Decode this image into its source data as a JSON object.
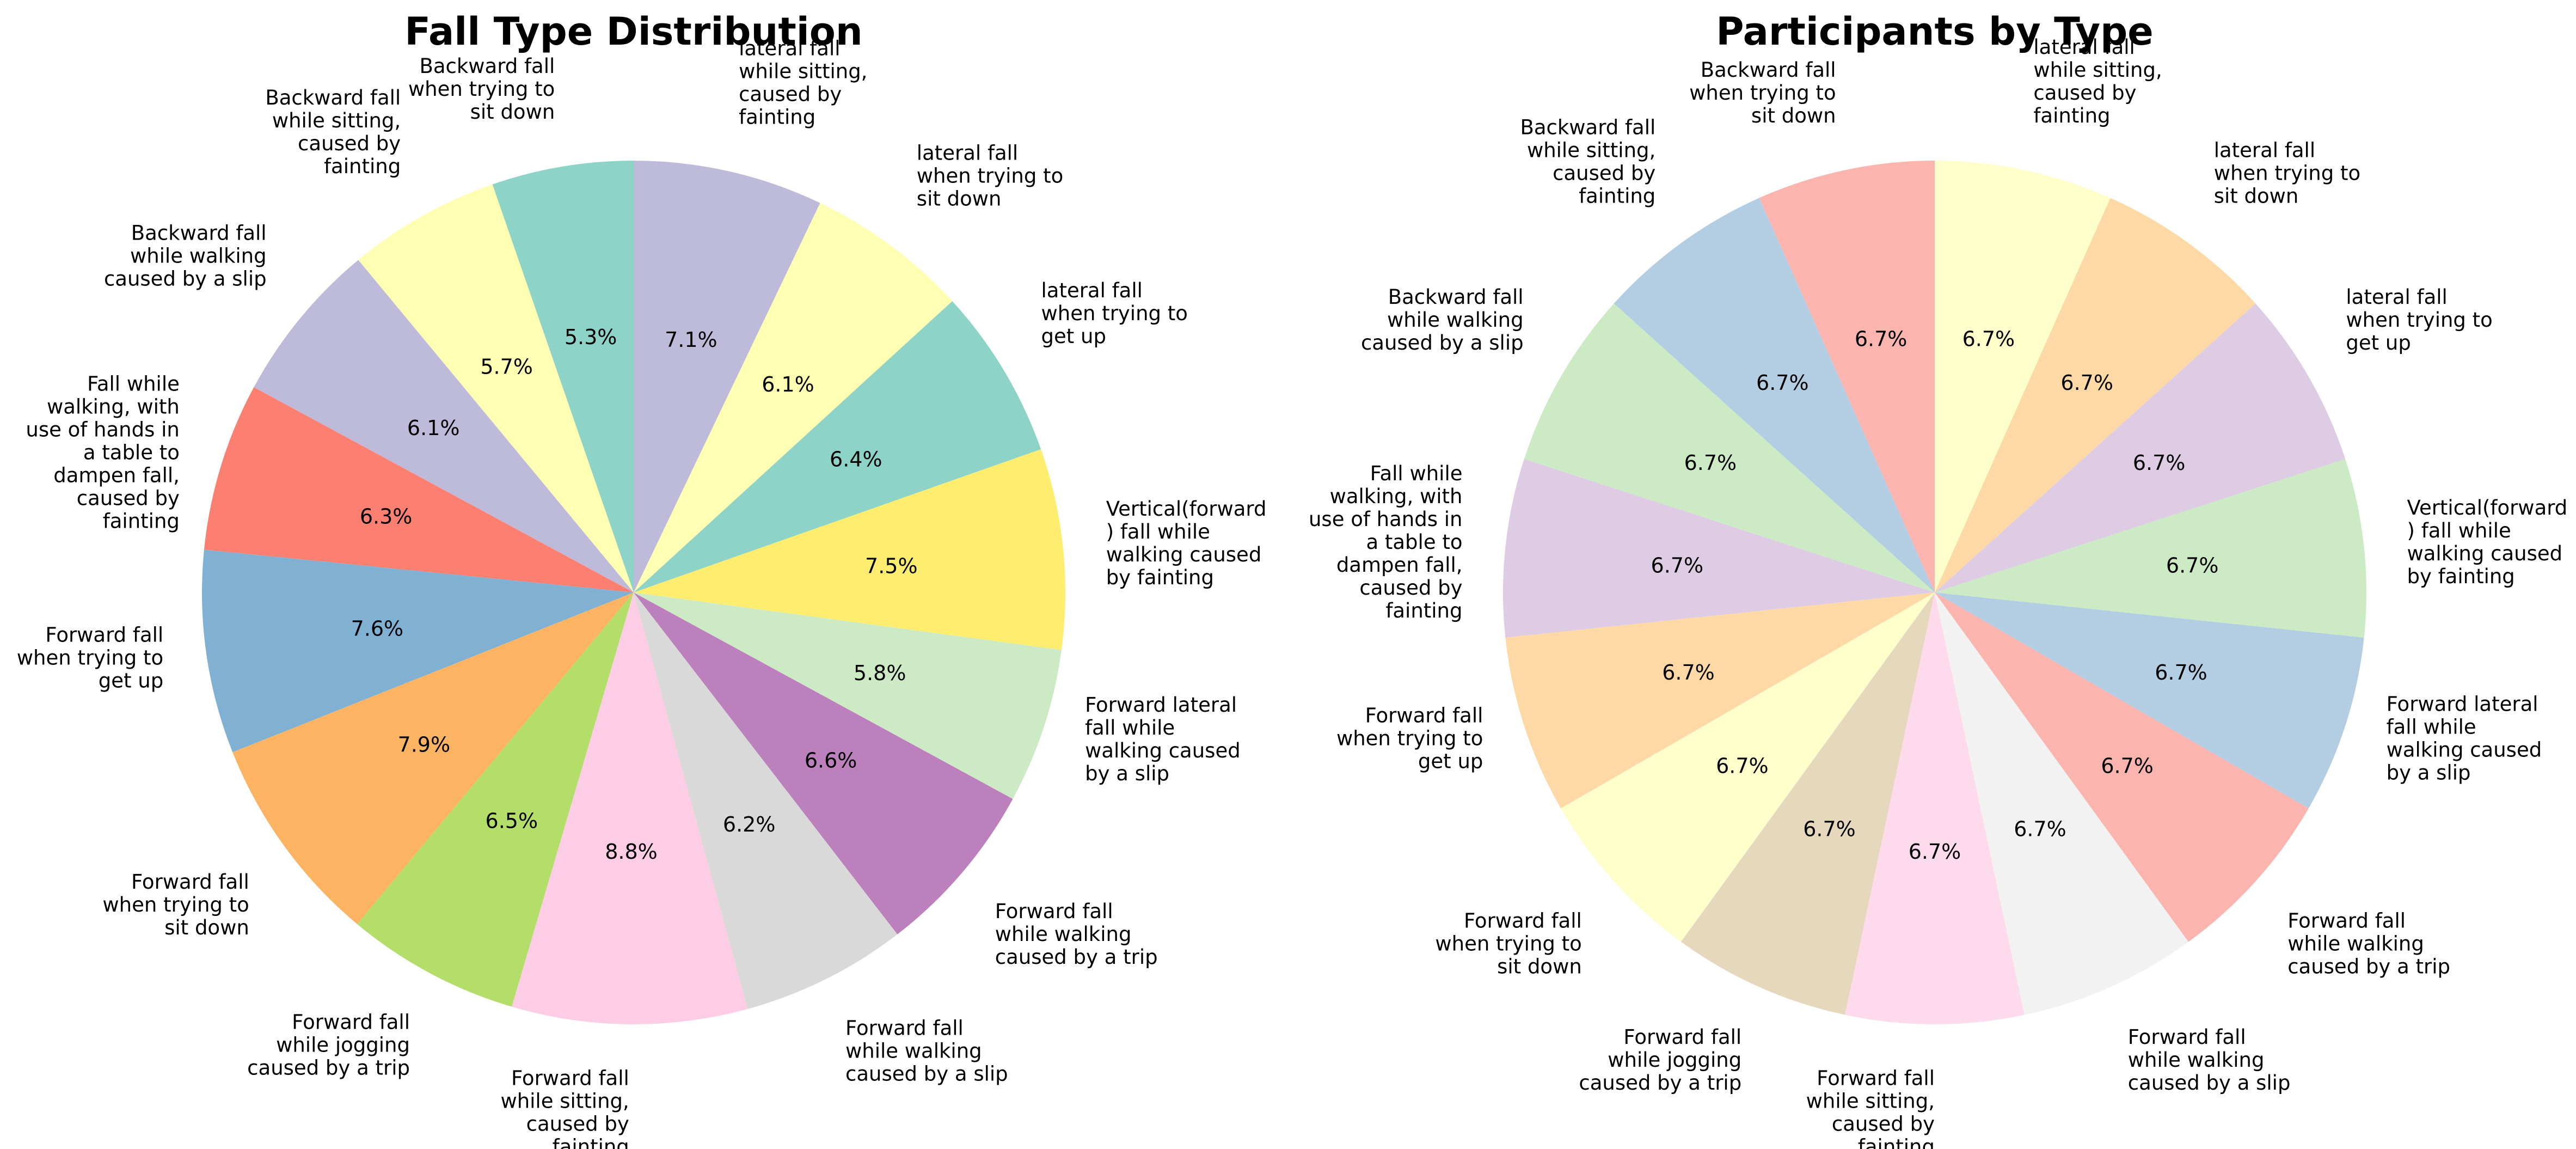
{
  "chart_data": [
    {
      "type": "pie",
      "title": "Fall Type Distribution",
      "start_angle": 90,
      "direction": "counterclockwise",
      "autopct": "%.1f%%",
      "slices": [
        {
          "label": "Backward fall when trying to sit down",
          "value": 5.3,
          "pct": "5.3%",
          "color": "#8dd3c7"
        },
        {
          "label": "Backward fall while sitting, caused by fainting",
          "value": 5.7,
          "pct": "5.7%",
          "color": "#ffffb3"
        },
        {
          "label": "Backward fall while walking caused by a slip",
          "value": 6.1,
          "pct": "6.1%",
          "color": "#bebada"
        },
        {
          "label": "Fall while walking, with use of hands in a table to dampen fall, caused by fainting",
          "value": 6.3,
          "pct": "6.3%",
          "color": "#fb8072"
        },
        {
          "label": "Forward fall when trying to get up",
          "value": 7.6,
          "pct": "7.6%",
          "color": "#80b1d3"
        },
        {
          "label": "Forward fall when trying to sit down",
          "value": 7.9,
          "pct": "7.9%",
          "color": "#fdb462"
        },
        {
          "label": "Forward fall while jogging caused by a trip",
          "value": 6.5,
          "pct": "6.5%",
          "color": "#b3de69"
        },
        {
          "label": "Forward fall while sitting, caused by fainting",
          "value": 8.8,
          "pct": "8.8%",
          "color": "#fccde5"
        },
        {
          "label": "Forward fall while walking caused by a slip",
          "value": 6.2,
          "pct": "6.2%",
          "color": "#d9d9d9"
        },
        {
          "label": "Forward fall while walking caused by a trip",
          "value": 6.6,
          "pct": "6.6%",
          "color": "#bc80bd"
        },
        {
          "label": "Forward lateral fall while walking caused by a slip",
          "value": 5.8,
          "pct": "5.8%",
          "color": "#ccebc5"
        },
        {
          "label": "Vertical(forward) fall while walking caused by fainting",
          "value": 7.5,
          "pct": "7.5%",
          "color": "#ffed6f"
        },
        {
          "label": "lateral fall when trying to get up",
          "value": 6.4,
          "pct": "6.4%",
          "color": "#8dd3c7"
        },
        {
          "label": "lateral fall when trying to sit down",
          "value": 6.1,
          "pct": "6.1%",
          "color": "#ffffb3"
        },
        {
          "label": "lateral fall while sitting, caused by fainting",
          "value": 7.1,
          "pct": "7.1%",
          "color": "#bebada"
        }
      ]
    },
    {
      "type": "pie",
      "title": "Participants by Type",
      "start_angle": 90,
      "direction": "counterclockwise",
      "autopct": "%.1f%%",
      "slices": [
        {
          "label": "Backward fall when trying to sit down",
          "value": 6.7,
          "pct": "6.7%",
          "color": "#fbb4ae"
        },
        {
          "label": "Backward fall while sitting, caused by fainting",
          "value": 6.7,
          "pct": "6.7%",
          "color": "#b3cde3"
        },
        {
          "label": "Backward fall while walking caused by a slip",
          "value": 6.7,
          "pct": "6.7%",
          "color": "#ccebc5"
        },
        {
          "label": "Fall while walking, with use of hands in a table to dampen fall, caused by fainting",
          "value": 6.7,
          "pct": "6.7%",
          "color": "#decbe4"
        },
        {
          "label": "Forward fall when trying to get up",
          "value": 6.7,
          "pct": "6.7%",
          "color": "#fed9a6"
        },
        {
          "label": "Forward fall when trying to sit down",
          "value": 6.7,
          "pct": "6.7%",
          "color": "#ffffcc"
        },
        {
          "label": "Forward fall while jogging caused by a trip",
          "value": 6.7,
          "pct": "6.7%",
          "color": "#e5d8bd"
        },
        {
          "label": "Forward fall while sitting, caused by fainting",
          "value": 6.7,
          "pct": "6.7%",
          "color": "#fddaec"
        },
        {
          "label": "Forward fall while walking caused by a slip",
          "value": 6.7,
          "pct": "6.7%",
          "color": "#f2f2f2"
        },
        {
          "label": "Forward fall while walking caused by a trip",
          "value": 6.7,
          "pct": "6.7%",
          "color": "#fbb4ae"
        },
        {
          "label": "Forward lateral fall while walking caused by a slip",
          "value": 6.7,
          "pct": "6.7%",
          "color": "#b3cde3"
        },
        {
          "label": "Vertical(forward) fall while walking caused by fainting",
          "value": 6.7,
          "pct": "6.7%",
          "color": "#ccebc5"
        },
        {
          "label": "lateral fall when trying to get up",
          "value": 6.7,
          "pct": "6.7%",
          "color": "#decbe4"
        },
        {
          "label": "lateral fall when trying to sit down",
          "value": 6.7,
          "pct": "6.7%",
          "color": "#fed9a6"
        },
        {
          "label": "lateral fall while sitting, caused by fainting",
          "value": 6.7,
          "pct": "6.7%",
          "color": "#ffffcc"
        }
      ]
    }
  ]
}
